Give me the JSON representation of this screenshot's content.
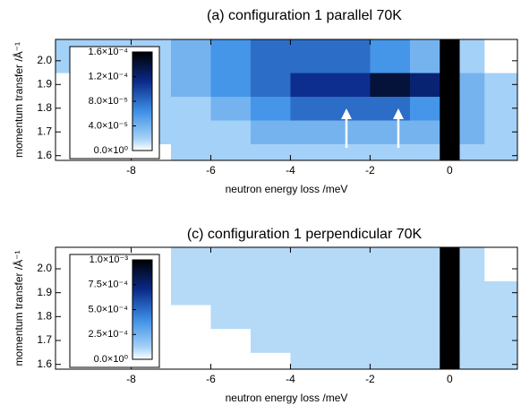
{
  "chart_data": [
    {
      "type": "heatmap",
      "title": "(a) configuration 1 parallel 70K",
      "xlabel": "neutron energy loss /meV",
      "ylabel": "momentum transfer /Å⁻¹",
      "x": [
        -9.5,
        -8.5,
        -7.5,
        -6.5,
        -5.5,
        -4.5,
        -3.5,
        -2.5,
        -1.5,
        -0.5,
        0,
        0.5,
        1.25
      ],
      "y": [
        1.6,
        1.7,
        1.8,
        1.9,
        2.0
      ],
      "values": [
        [
          0,
          0,
          0,
          2e-05,
          2e-05,
          2e-05,
          2e-05,
          2e-05,
          2e-05,
          2e-05,
          0.00016,
          2e-05,
          2e-05
        ],
        [
          0,
          0,
          2e-05,
          2e-05,
          2e-05,
          4e-05,
          4e-05,
          4e-05,
          4e-05,
          4e-05,
          0.00016,
          4e-05,
          2e-05
        ],
        [
          0,
          0,
          2e-05,
          2e-05,
          4e-05,
          6e-05,
          8e-05,
          8e-05,
          8e-05,
          6e-05,
          0.00016,
          4e-05,
          2e-05
        ],
        [
          0,
          2e-05,
          2e-05,
          4e-05,
          6e-05,
          8e-05,
          0.00011,
          0.00011,
          0.00014,
          0.00012,
          0.00016,
          4e-05,
          2e-05
        ],
        [
          2e-05,
          2e-05,
          2e-05,
          4e-05,
          6e-05,
          8e-05,
          8e-05,
          8e-05,
          6e-05,
          4e-05,
          0.00016,
          2e-05,
          0
        ]
      ],
      "xlim": [
        -9.9,
        1.7
      ],
      "ylim": [
        1.58,
        2.09
      ],
      "xticks": [
        -8,
        -6,
        -4,
        -2,
        0
      ],
      "yticks": [
        1.6,
        1.7,
        1.8,
        1.9,
        {
          "value": 2,
          "label": "2.0"
        }
      ],
      "clim": [
        0,
        0.00016
      ],
      "cticks": [
        {
          "value": 0,
          "label": "0.0×10⁰"
        },
        {
          "value": 4e-05,
          "label": "4.0×10⁻⁵"
        },
        {
          "value": 8e-05,
          "label": "8.0×10⁻⁵"
        },
        {
          "value": 0.00012,
          "label": "1.2×10⁻⁴"
        },
        {
          "value": 0.00016,
          "label": "1.6×10⁻⁴"
        }
      ],
      "colorscale": [
        [
          0,
          "#ffffff"
        ],
        [
          0.12,
          "#a6d2f7"
        ],
        [
          0.4,
          "#3c8fe6"
        ],
        [
          0.7,
          "#0b2a8a"
        ],
        [
          1,
          "#000000"
        ]
      ]
    },
    {
      "type": "heatmap",
      "title": "(c) configuration 1 perpendicular 70K",
      "xlabel": "neutron energy loss /meV",
      "ylabel": "momentum transfer /Å⁻¹",
      "x": [
        -9.5,
        -8.5,
        -7.5,
        -6.5,
        -5.5,
        -4.5,
        -3.5,
        -2.5,
        -1.5,
        -0.5,
        0,
        0.5,
        1.25
      ],
      "y": [
        1.6,
        1.7,
        1.8,
        1.9,
        2.0
      ],
      "values": [
        [
          0,
          0,
          0,
          0,
          0,
          0,
          0.0001,
          0.0001,
          0.0001,
          0.0001,
          0.001,
          0.0001,
          0.0001
        ],
        [
          0,
          0,
          0,
          0,
          0,
          0.0001,
          0.0001,
          0.0001,
          0.0001,
          0.0001,
          0.001,
          0.0001,
          0.0001
        ],
        [
          0,
          0,
          0,
          0,
          0.0001,
          0.0001,
          0.0001,
          0.0001,
          0.0001,
          0.0001,
          0.001,
          0.0001,
          0.0001
        ],
        [
          0,
          0,
          0,
          0.0001,
          0.0001,
          0.0001,
          0.0001,
          0.0001,
          0.0001,
          0.0001,
          0.001,
          0.0001,
          0.0001
        ],
        [
          0,
          0,
          0,
          0.0001,
          0.0001,
          0.0001,
          0.0001,
          0.0001,
          0.0001,
          0.0001,
          0.001,
          0.0001,
          0
        ]
      ],
      "xlim": [
        -9.9,
        1.7
      ],
      "ylim": [
        1.58,
        2.09
      ],
      "xticks": [
        -8,
        -6,
        -4,
        -2,
        0
      ],
      "yticks": [
        1.6,
        1.7,
        1.8,
        1.9,
        {
          "value": 2,
          "label": "2.0"
        }
      ],
      "clim": [
        0,
        0.001
      ],
      "cticks": [
        {
          "value": 0,
          "label": "0.0×10⁰"
        },
        {
          "value": 0.00025,
          "label": "2.5×10⁻⁴"
        },
        {
          "value": 0.0005,
          "label": "5.0×10⁻⁴"
        },
        {
          "value": 0.00075,
          "label": "7.5×10⁻⁴"
        },
        {
          "value": 0.001,
          "label": "1.0×10⁻³"
        }
      ],
      "colorscale": [
        [
          0,
          "#ffffff"
        ],
        [
          0.12,
          "#a6d2f7"
        ],
        [
          0.4,
          "#3c8fe6"
        ],
        [
          0.7,
          "#0b2a8a"
        ],
        [
          1,
          "#000000"
        ]
      ]
    }
  ]
}
